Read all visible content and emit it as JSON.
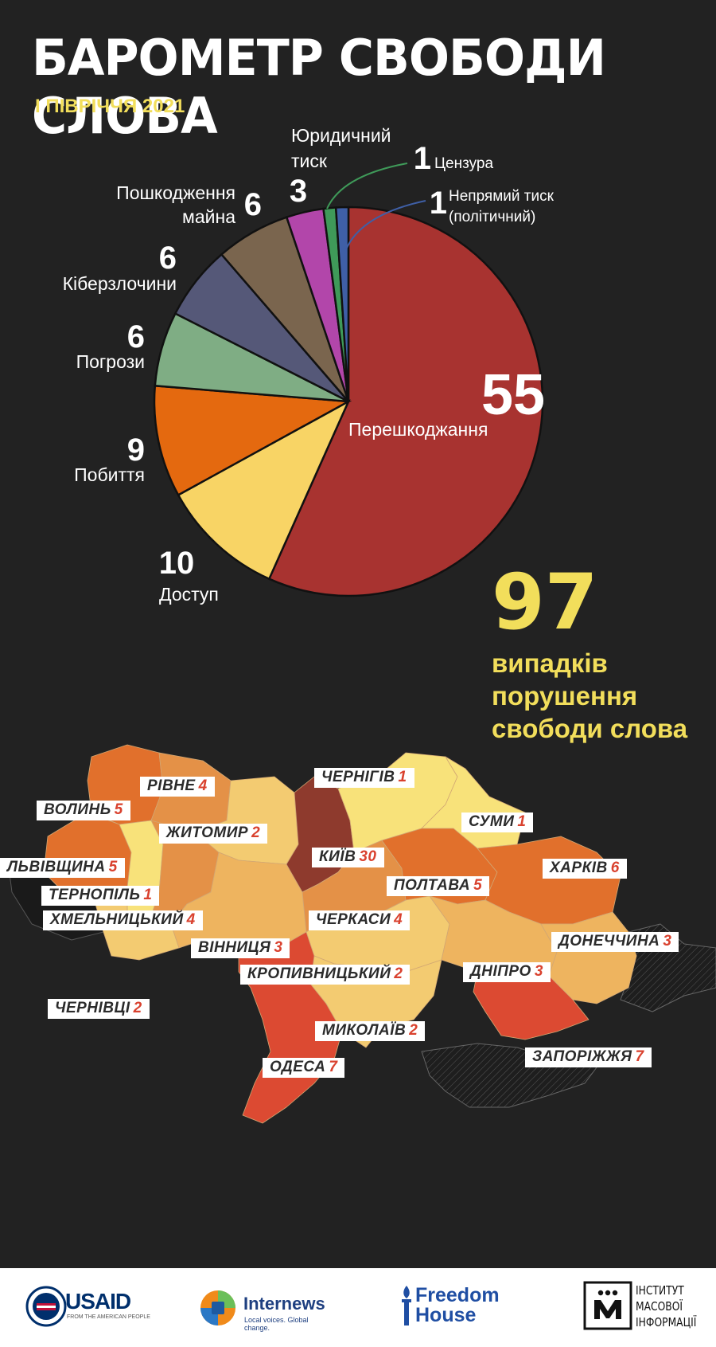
{
  "title": "БАРОМЕТР СВОБОДИ СЛОВА",
  "subtitle": "I ПІВРІЧЧЯ 2021",
  "colors": {
    "background": "#222222",
    "accent_yellow": "#f2de5b",
    "label_red": "#d9412e"
  },
  "chart_data": [
    {
      "type": "pie",
      "slices": [
        {
          "label": "Перешкоджання",
          "value": 55,
          "color": "#a83330"
        },
        {
          "label": "Доступ",
          "value": 10,
          "color": "#f8d465"
        },
        {
          "label": "Побиття",
          "value": 9,
          "color": "#e4690f"
        },
        {
          "label": "Погрози",
          "value": 6,
          "color": "#7fad84"
        },
        {
          "label": "Кіберзлочини",
          "value": 6,
          "color": "#555878"
        },
        {
          "label": "Пошкодження майна",
          "value": 6,
          "color": "#7a654e"
        },
        {
          "label": "Юридичний тиск",
          "value": 3,
          "color": "#b246aa"
        },
        {
          "label": "Цензура",
          "value": 1,
          "color": "#3f9a59"
        },
        {
          "label": "Непрямий тиск (політичний)",
          "value": 1,
          "color": "#3f5fa6"
        }
      ]
    },
    {
      "type": "heatmap",
      "regions": [
        {
          "name": "ВОЛИНЬ",
          "value": 5
        },
        {
          "name": "РІВНЕ",
          "value": 4
        },
        {
          "name": "ЖИТОМИР",
          "value": 2
        },
        {
          "name": "ЧЕРНІГІВ",
          "value": 1
        },
        {
          "name": "СУМИ",
          "value": 1
        },
        {
          "name": "ЛЬВІВЩИНА",
          "value": 5
        },
        {
          "name": "КИЇВ",
          "value": 30
        },
        {
          "name": "ТЕРНОПІЛЬ",
          "value": 1
        },
        {
          "name": "ПОЛТАВА",
          "value": 5
        },
        {
          "name": "ХАРКІВ",
          "value": 6
        },
        {
          "name": "ХМЕЛЬНИЦЬКИЙ",
          "value": 4
        },
        {
          "name": "ЧЕРКАСИ",
          "value": 4
        },
        {
          "name": "ВІННИЦЯ",
          "value": 3
        },
        {
          "name": "ДОНЕЧЧИНА",
          "value": 3
        },
        {
          "name": "КРОПИВНИЦЬКИЙ",
          "value": 2
        },
        {
          "name": "ДНІПРО",
          "value": 3
        },
        {
          "name": "ЧЕРНІВЦІ",
          "value": 2
        },
        {
          "name": "МИКОЛАЇВ",
          "value": 2
        },
        {
          "name": "ЗАПОРІЖЖЯ",
          "value": 7
        },
        {
          "name": "ОДЕСА",
          "value": 7
        }
      ]
    }
  ],
  "total": {
    "value": "97",
    "label": "випадків\nпорушення\nсвободи слова"
  },
  "footer": {
    "usaid": {
      "name": "USAID",
      "tagline": "FROM THE AMERICAN PEOPLE"
    },
    "internews": {
      "name": "Internews",
      "tagline": "Local voices. Global change."
    },
    "freedomhouse": {
      "name_line1": "Freedom",
      "name_line2": "House"
    },
    "imi": {
      "line1": "ІНСТИТУТ",
      "line2": "МАСОВОЇ",
      "line3": "ІНФОРМАЦІЇ"
    }
  }
}
